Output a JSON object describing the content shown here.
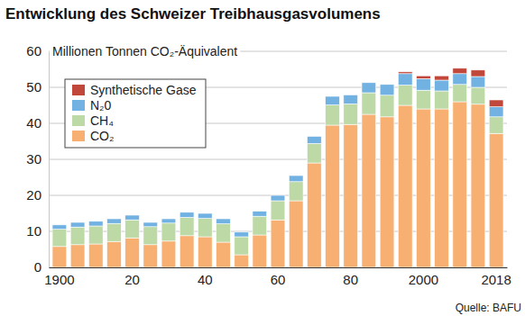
{
  "chart_data": {
    "type": "bar",
    "title": "Entwicklung des Schweizer Treibhausgasvolumens",
    "y_label": "Millionen Tonnen CO₂-Äquivalent",
    "source": "Quelle: BAFU",
    "stacked": true,
    "grid": true,
    "legend": "top-left",
    "categories": [
      "1900",
      null,
      null,
      null,
      "20",
      null,
      null,
      null,
      "40",
      null,
      null,
      null,
      "60",
      null,
      null,
      null,
      "80",
      null,
      null,
      null,
      "2000",
      null,
      null,
      null,
      "2018"
    ],
    "ylim": [
      0,
      60
    ],
    "yticks": [
      0,
      10,
      20,
      30,
      40,
      50,
      60
    ],
    "series": [
      {
        "name": "CO₂",
        "color": "#f8b072",
        "values": [
          5.8,
          6.3,
          6.5,
          7.2,
          8.2,
          6.3,
          7.3,
          8.8,
          8.5,
          7.0,
          3.5,
          9.0,
          13.2,
          18.5,
          29.0,
          39.5,
          39.7,
          42.5,
          41.8,
          45.0,
          44.0,
          44.0,
          46.0,
          45.3,
          37.2
        ]
      },
      {
        "name": "CH₄",
        "color": "#bcd9a6",
        "values": [
          4.8,
          4.9,
          5.0,
          5.0,
          5.0,
          5.0,
          5.0,
          5.1,
          5.1,
          5.1,
          5.0,
          5.2,
          5.3,
          5.3,
          5.4,
          5.6,
          5.7,
          6.0,
          6.0,
          5.6,
          5.2,
          5.0,
          4.8,
          4.7,
          4.6
        ]
      },
      {
        "name": "N₂0",
        "color": "#72b2e2",
        "values": [
          1.2,
          1.3,
          1.3,
          1.3,
          1.3,
          1.2,
          1.2,
          1.4,
          1.4,
          1.4,
          1.3,
          1.4,
          1.5,
          1.7,
          2.0,
          2.4,
          2.5,
          2.8,
          3.0,
          3.2,
          3.2,
          3.0,
          3.0,
          3.0,
          2.8
        ]
      },
      {
        "name": "Synthetische Gase",
        "color": "#c0473a",
        "values": [
          0,
          0,
          0,
          0,
          0,
          0,
          0,
          0,
          0,
          0,
          0,
          0,
          0,
          0,
          0,
          0,
          0,
          0,
          0,
          0.5,
          0.8,
          1.2,
          1.5,
          1.8,
          1.9
        ]
      }
    ]
  }
}
